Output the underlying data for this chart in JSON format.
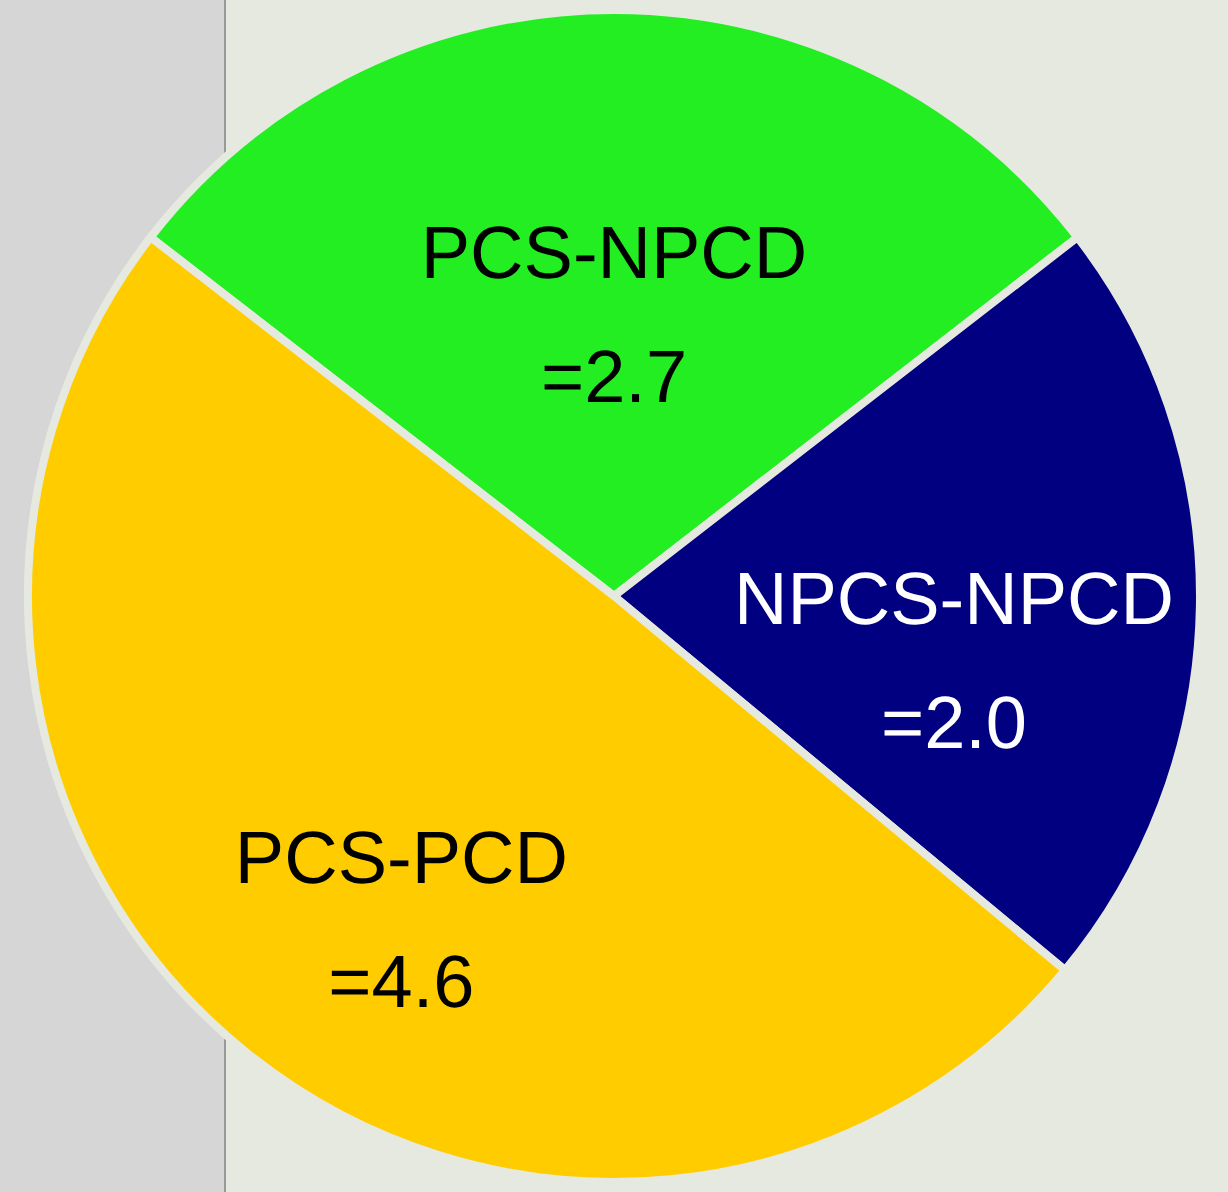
{
  "chart_data": {
    "type": "pie",
    "categories": [
      "PCS-NPCD",
      "NPCS-NPCD",
      "PCS-PCD"
    ],
    "values": [
      2.7,
      2.0,
      4.6
    ],
    "colors": [
      "#22ee22",
      "#000080",
      "#ffcc00"
    ],
    "value_labels": [
      "=2.7",
      "=2.0",
      "=4.6"
    ]
  }
}
